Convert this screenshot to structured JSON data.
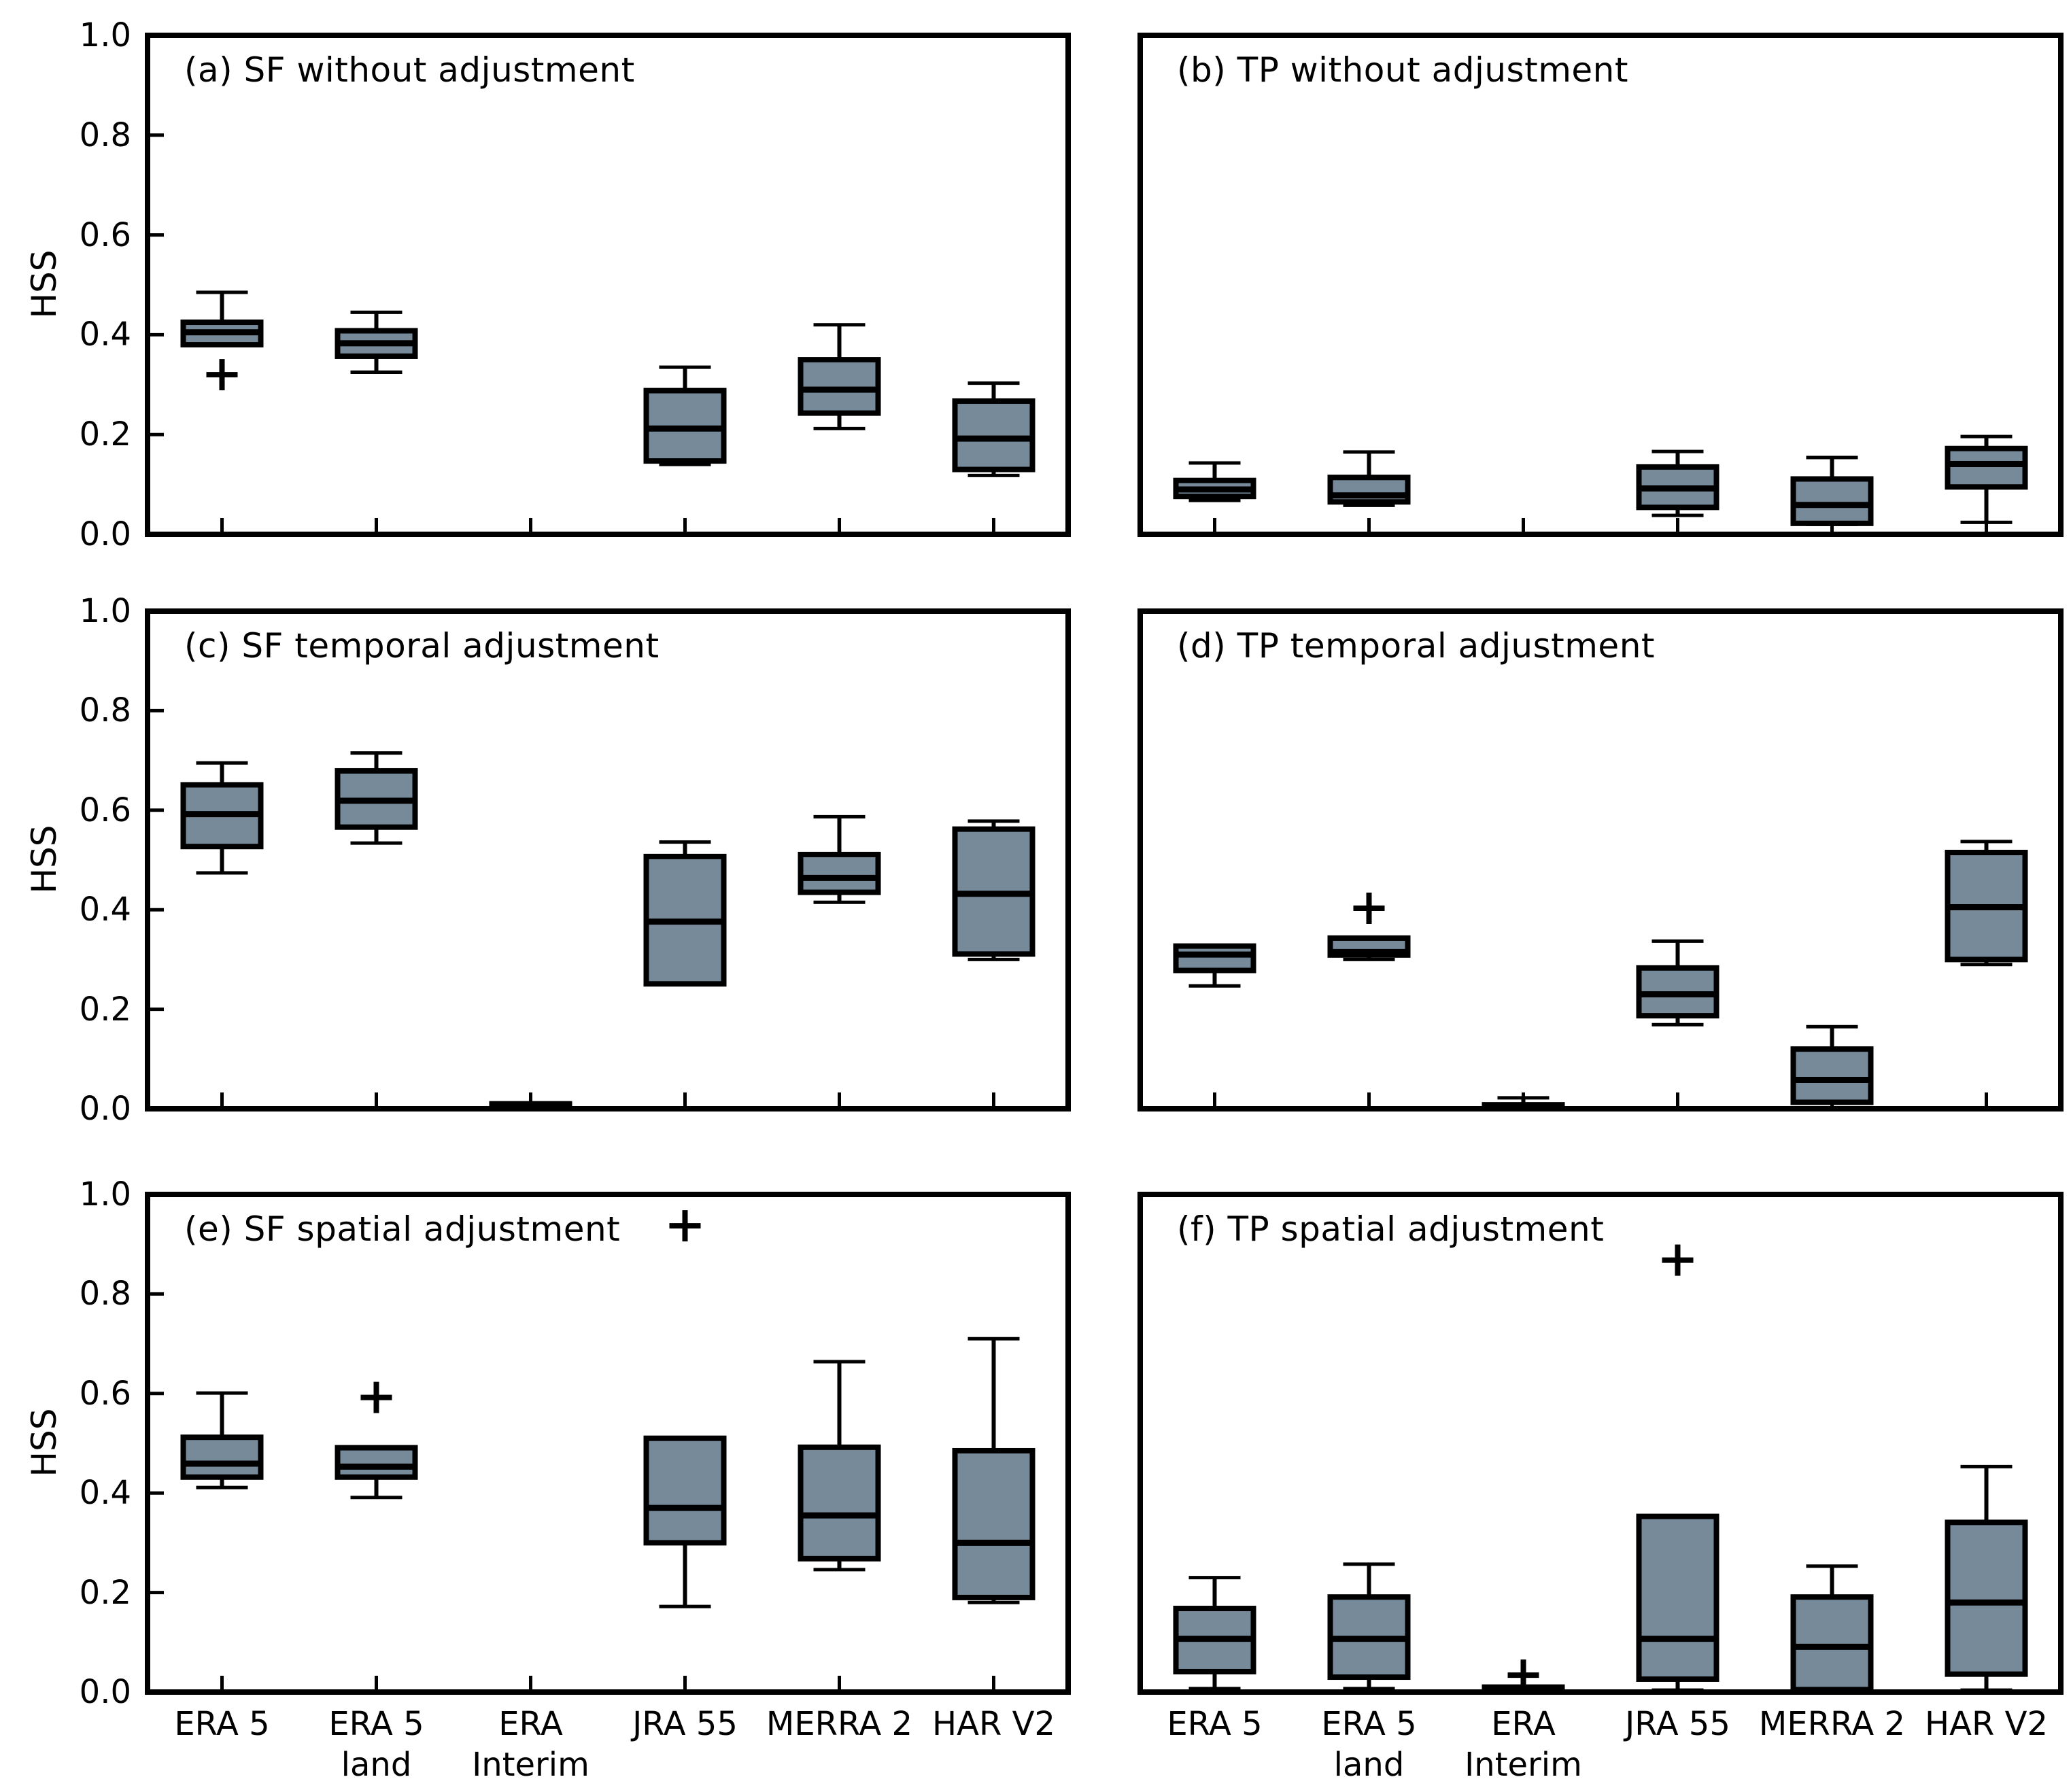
{
  "figure": {
    "background": "#ffffff",
    "ylabel": "HSS",
    "box_fill_color": "#778A9A",
    "line_color": "#000000",
    "ytick_labels": [
      "0.0",
      "0.2",
      "0.4",
      "0.6",
      "0.8",
      "1.0"
    ],
    "categories": [
      {
        "line1": "ERA 5",
        "line2": ""
      },
      {
        "line1": "ERA 5",
        "line2": "land"
      },
      {
        "line1": "ERA",
        "line2": "Interim"
      },
      {
        "line1": "JRA 55",
        "line2": ""
      },
      {
        "line1": "MERRA 2",
        "line2": ""
      },
      {
        "line1": "HAR V2",
        "line2": ""
      }
    ]
  },
  "chart_data": {
    "type": "boxplot",
    "ylabel": "HSS",
    "ylim": [
      0.0,
      1.0
    ],
    "yticks": [
      0.0,
      0.2,
      0.4,
      0.6,
      0.8,
      1.0
    ],
    "grid": false,
    "legend": "none",
    "categories": [
      "ERA 5",
      "ERA 5 land",
      "ERA Interim",
      "JRA 55",
      "MERRA 2",
      "HAR V2"
    ],
    "panels": [
      {
        "id": "a",
        "title": "(a) SF without adjustment",
        "row": 0,
        "col": 0,
        "boxes": [
          {
            "whislo": 0.38,
            "q1": 0.38,
            "med": 0.405,
            "q3": 0.425,
            "whishi": 0.485,
            "outliers": [
              0.32
            ]
          },
          {
            "whislo": 0.325,
            "q1": 0.357,
            "med": 0.383,
            "q3": 0.408,
            "whishi": 0.445,
            "outliers": []
          },
          null,
          {
            "whislo": 0.14,
            "q1": 0.147,
            "med": 0.212,
            "q3": 0.288,
            "whishi": 0.335,
            "outliers": []
          },
          {
            "whislo": 0.212,
            "q1": 0.243,
            "med": 0.29,
            "q3": 0.35,
            "whishi": 0.42,
            "outliers": []
          },
          {
            "whislo": 0.118,
            "q1": 0.13,
            "med": 0.192,
            "q3": 0.267,
            "whishi": 0.303,
            "outliers": []
          }
        ]
      },
      {
        "id": "b",
        "title": "(b) TP without adjustment",
        "row": 0,
        "col": 1,
        "boxes": [
          {
            "whislo": 0.068,
            "q1": 0.076,
            "med": 0.09,
            "q3": 0.108,
            "whishi": 0.143,
            "outliers": []
          },
          {
            "whislo": 0.058,
            "q1": 0.065,
            "med": 0.078,
            "q3": 0.114,
            "whishi": 0.165,
            "outliers": []
          },
          null,
          {
            "whislo": 0.038,
            "q1": 0.054,
            "med": 0.092,
            "q3": 0.135,
            "whishi": 0.166,
            "outliers": []
          },
          {
            "whislo": 0.02,
            "q1": 0.022,
            "med": 0.059,
            "q3": 0.111,
            "whishi": 0.154,
            "outliers": []
          },
          {
            "whislo": 0.024,
            "q1": 0.095,
            "med": 0.141,
            "q3": 0.172,
            "whishi": 0.196,
            "outliers": []
          }
        ]
      },
      {
        "id": "c",
        "title": "(c) SF temporal adjustment",
        "row": 1,
        "col": 0,
        "boxes": [
          {
            "whislo": 0.474,
            "q1": 0.527,
            "med": 0.592,
            "q3": 0.651,
            "whishi": 0.695,
            "outliers": []
          },
          {
            "whislo": 0.534,
            "q1": 0.566,
            "med": 0.619,
            "q3": 0.679,
            "whishi": 0.715,
            "outliers": []
          },
          {
            "whislo": 0.0,
            "q1": 0.0,
            "med": 0.005,
            "q3": 0.01,
            "whishi": 0.01,
            "outliers": []
          },
          {
            "whislo": 0.251,
            "q1": 0.251,
            "med": 0.376,
            "q3": 0.507,
            "whishi": 0.536,
            "outliers": []
          },
          {
            "whislo": 0.415,
            "q1": 0.435,
            "med": 0.464,
            "q3": 0.511,
            "whishi": 0.587,
            "outliers": []
          },
          {
            "whislo": 0.3,
            "q1": 0.311,
            "med": 0.432,
            "q3": 0.562,
            "whishi": 0.578,
            "outliers": []
          }
        ]
      },
      {
        "id": "d",
        "title": "(d) TP temporal adjustment",
        "row": 1,
        "col": 1,
        "boxes": [
          {
            "whislo": 0.247,
            "q1": 0.278,
            "med": 0.31,
            "q3": 0.327,
            "whishi": 0.327,
            "outliers": []
          },
          {
            "whislo": 0.3,
            "q1": 0.309,
            "med": 0.315,
            "q3": 0.343,
            "whishi": 0.343,
            "outliers": [
              0.403
            ]
          },
          {
            "whislo": 0.0,
            "q1": 0.0,
            "med": 0.004,
            "q3": 0.008,
            "whishi": 0.022,
            "outliers": []
          },
          {
            "whislo": 0.169,
            "q1": 0.187,
            "med": 0.23,
            "q3": 0.283,
            "whishi": 0.337,
            "outliers": []
          },
          {
            "whislo": 0.013,
            "q1": 0.013,
            "med": 0.058,
            "q3": 0.12,
            "whishi": 0.165,
            "outliers": []
          },
          {
            "whislo": 0.29,
            "q1": 0.3,
            "med": 0.405,
            "q3": 0.515,
            "whishi": 0.537,
            "outliers": []
          }
        ]
      },
      {
        "id": "e",
        "title": "(e) SF spatial adjustment",
        "row": 2,
        "col": 0,
        "boxes": [
          {
            "whislo": 0.411,
            "q1": 0.432,
            "med": 0.459,
            "q3": 0.512,
            "whishi": 0.601,
            "outliers": []
          },
          {
            "whislo": 0.391,
            "q1": 0.432,
            "med": 0.453,
            "q3": 0.491,
            "whishi": 0.491,
            "outliers": [
              0.592
            ]
          },
          null,
          {
            "whislo": 0.172,
            "q1": 0.3,
            "med": 0.37,
            "q3": 0.51,
            "whishi": 0.51,
            "outliers": [
              0.937
            ]
          },
          {
            "whislo": 0.246,
            "q1": 0.268,
            "med": 0.355,
            "q3": 0.492,
            "whishi": 0.664,
            "outliers": []
          },
          {
            "whislo": 0.18,
            "q1": 0.19,
            "med": 0.3,
            "q3": 0.485,
            "whishi": 0.71,
            "outliers": []
          }
        ]
      },
      {
        "id": "f",
        "title": "(f) TP spatial adjustment",
        "row": 2,
        "col": 1,
        "boxes": [
          {
            "whislo": 0.007,
            "q1": 0.041,
            "med": 0.107,
            "q3": 0.168,
            "whishi": 0.23,
            "outliers": []
          },
          {
            "whislo": 0.007,
            "q1": 0.03,
            "med": 0.107,
            "q3": 0.191,
            "whishi": 0.257,
            "outliers": []
          },
          {
            "whislo": 0.0,
            "q1": 0.0,
            "med": 0.005,
            "q3": 0.01,
            "whishi": 0.01,
            "outliers": [
              0.034
            ]
          },
          {
            "whislo": 0.004,
            "q1": 0.026,
            "med": 0.107,
            "q3": 0.353,
            "whishi": 0.353,
            "outliers": [
              0.868
            ]
          },
          {
            "whislo": 0.005,
            "q1": 0.005,
            "med": 0.091,
            "q3": 0.191,
            "whishi": 0.253,
            "outliers": []
          },
          {
            "whislo": 0.004,
            "q1": 0.036,
            "med": 0.18,
            "q3": 0.341,
            "whishi": 0.453,
            "outliers": []
          }
        ]
      }
    ]
  }
}
